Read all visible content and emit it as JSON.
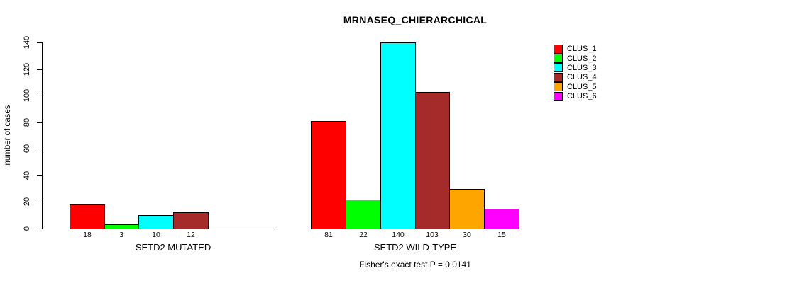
{
  "chart_data": {
    "type": "bar",
    "title": "MRNASEQ_CHIERARCHICAL",
    "ylabel": "number of cases",
    "xlabel": "",
    "ylim": [
      0,
      140
    ],
    "yticks": [
      0,
      20,
      40,
      60,
      80,
      100,
      120,
      140
    ],
    "grid": false,
    "legend_position": "right",
    "annotation": "Fisher's exact test P = 0.0141",
    "categories": [
      "CLUS_1",
      "CLUS_2",
      "CLUS_3",
      "CLUS_4",
      "CLUS_5",
      "CLUS_6"
    ],
    "legend": [
      {
        "label": "CLUS_1",
        "color": "#FF0000"
      },
      {
        "label": "CLUS_2",
        "color": "#00FF00"
      },
      {
        "label": "CLUS_3",
        "color": "#00FFFF"
      },
      {
        "label": "CLUS_4",
        "color": "#A52A2A"
      },
      {
        "label": "CLUS_5",
        "color": "#FFA500"
      },
      {
        "label": "CLUS_6",
        "color": "#FF00FF"
      }
    ],
    "groups": [
      {
        "label": "SETD2 MUTATED",
        "values": [
          18,
          3,
          10,
          12,
          0,
          0
        ]
      },
      {
        "label": "SETD2 WILD-TYPE",
        "values": [
          81,
          22,
          140,
          103,
          30,
          15
        ]
      }
    ]
  }
}
